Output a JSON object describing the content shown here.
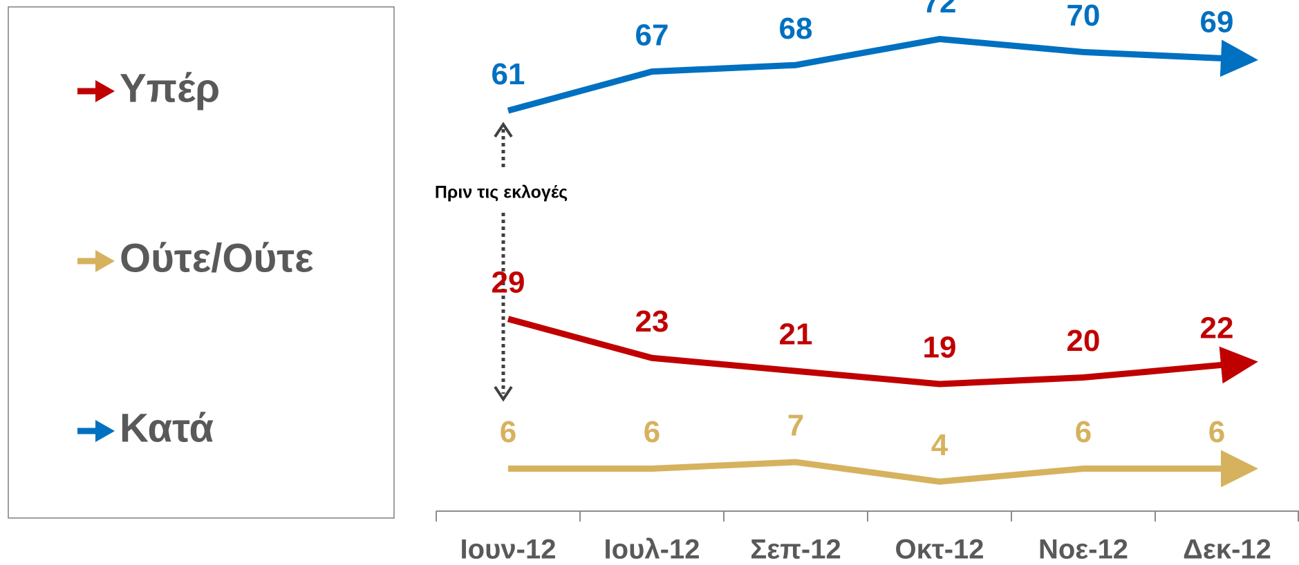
{
  "chart_data": {
    "type": "line",
    "categories": [
      "Ιουν-12",
      "Ιουλ-12",
      "Σεπ-12",
      "Οκτ-12",
      "Νοε-12",
      "Δεκ-12"
    ],
    "series": [
      {
        "name": "Υπέρ",
        "color": "#c00000",
        "values": [
          29,
          23,
          21,
          19,
          20,
          22
        ]
      },
      {
        "name": "Ούτε/Ούτε",
        "color": "#d6b25e",
        "values": [
          6,
          6,
          7,
          4,
          6,
          6
        ]
      },
      {
        "name": "Κατά",
        "color": "#0070c0",
        "values": [
          61,
          67,
          68,
          72,
          70,
          69
        ]
      }
    ],
    "annotation": "Πριν τις εκλογές",
    "ylim": [
      0,
      78
    ]
  }
}
